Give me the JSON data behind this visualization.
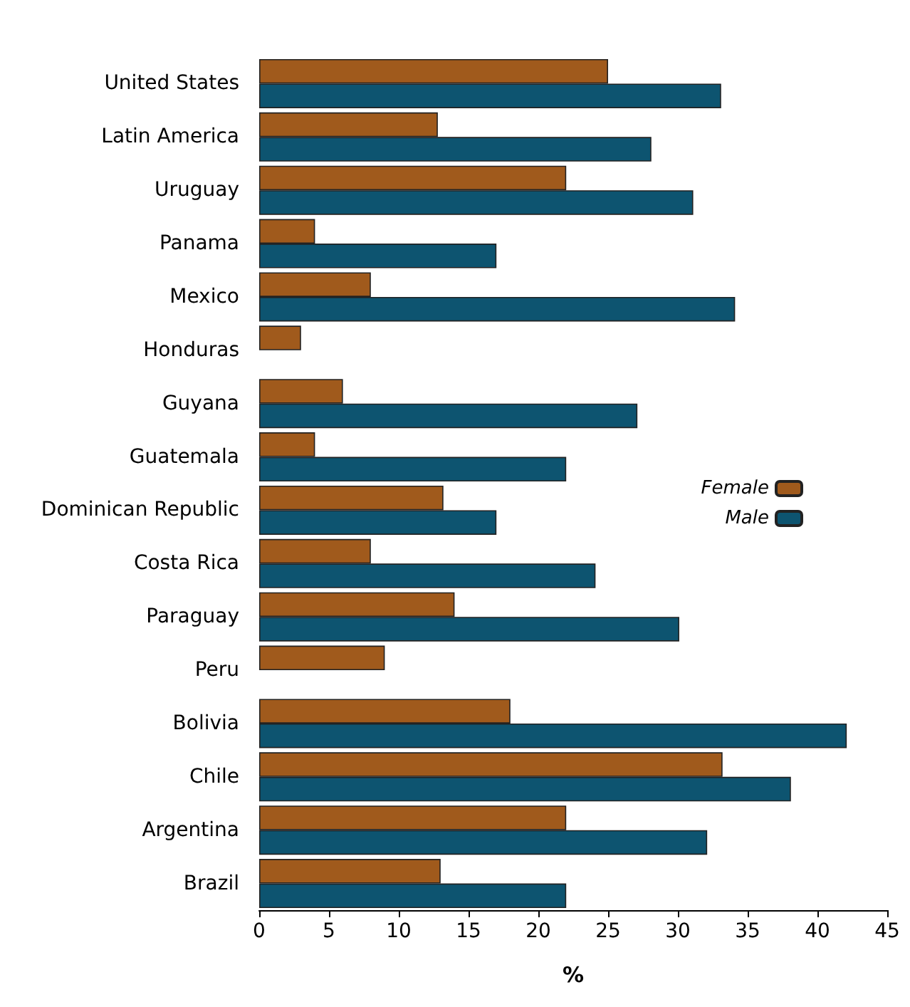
{
  "chart_data": {
    "type": "bar",
    "orientation": "horizontal",
    "xlabel": "%",
    "categories": [
      "United States",
      "Latin America",
      "Uruguay",
      "Panama",
      "Mexico",
      "Honduras",
      "Guyana",
      "Guatemala",
      "Dominican Republic",
      "Costa Rica",
      "Paraguay",
      "Peru",
      "Bolivia",
      "Chile",
      "Argentina",
      "Brazil"
    ],
    "series": [
      {
        "name": "Female",
        "color": "#a05a1c",
        "values": [
          25,
          12.8,
          22,
          4,
          8,
          3,
          6,
          4,
          13.2,
          8,
          14,
          9,
          18,
          33.2,
          22,
          13
        ]
      },
      {
        "name": "Male",
        "color": "#0d5470",
        "values": [
          33.1,
          28.1,
          31.1,
          17,
          34.1,
          null,
          27.1,
          22,
          17,
          24.1,
          30.1,
          null,
          42.1,
          38.1,
          32.1,
          22
        ]
      }
    ],
    "xlim": [
      0,
      45
    ],
    "xticks": [
      0,
      5,
      10,
      15,
      20,
      25,
      30,
      35,
      40,
      45
    ],
    "grid": false,
    "legend": "right"
  }
}
